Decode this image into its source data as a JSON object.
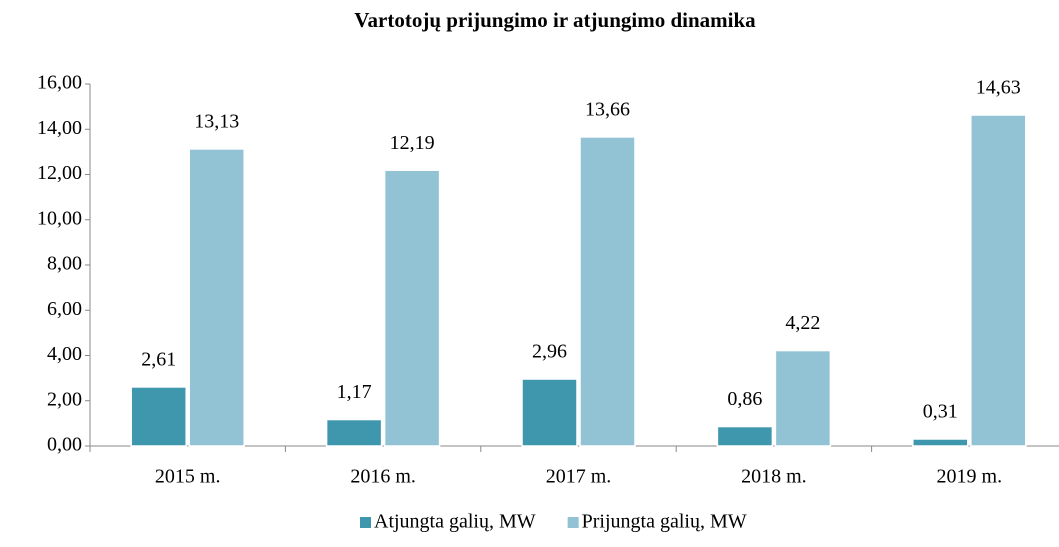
{
  "chart_data": {
    "type": "bar",
    "title": "Vartotojų prijungimo ir atjungimo dinamika",
    "categories": [
      "2015 m.",
      "2016 m.",
      "2017 m.",
      "2018 m.",
      "2019 m."
    ],
    "series": [
      {
        "name": "Atjungta galių, MW",
        "color": "#3f97ae",
        "values": [
          2.61,
          1.17,
          2.96,
          0.86,
          0.31
        ],
        "value_labels": [
          "2,61",
          "1,17",
          "2,96",
          "0,86",
          "0,31"
        ]
      },
      {
        "name": "Prijungta galių, MW",
        "color": "#92c3d4",
        "values": [
          13.13,
          12.19,
          13.66,
          4.22,
          14.63
        ],
        "value_labels": [
          "13,13",
          "12,19",
          "13,66",
          "4,22",
          "14,63"
        ]
      }
    ],
    "ylim": [
      0,
      16
    ],
    "yticks": [
      {
        "value": 0,
        "label": "0,00"
      },
      {
        "value": 2,
        "label": "2,00"
      },
      {
        "value": 4,
        "label": "4,00"
      },
      {
        "value": 6,
        "label": "6,00"
      },
      {
        "value": 8,
        "label": "8,00"
      },
      {
        "value": 10,
        "label": "10,00"
      },
      {
        "value": 12,
        "label": "12,00"
      },
      {
        "value": 14,
        "label": "14,00"
      },
      {
        "value": 16,
        "label": "16,00"
      }
    ],
    "legend": "bottom"
  }
}
